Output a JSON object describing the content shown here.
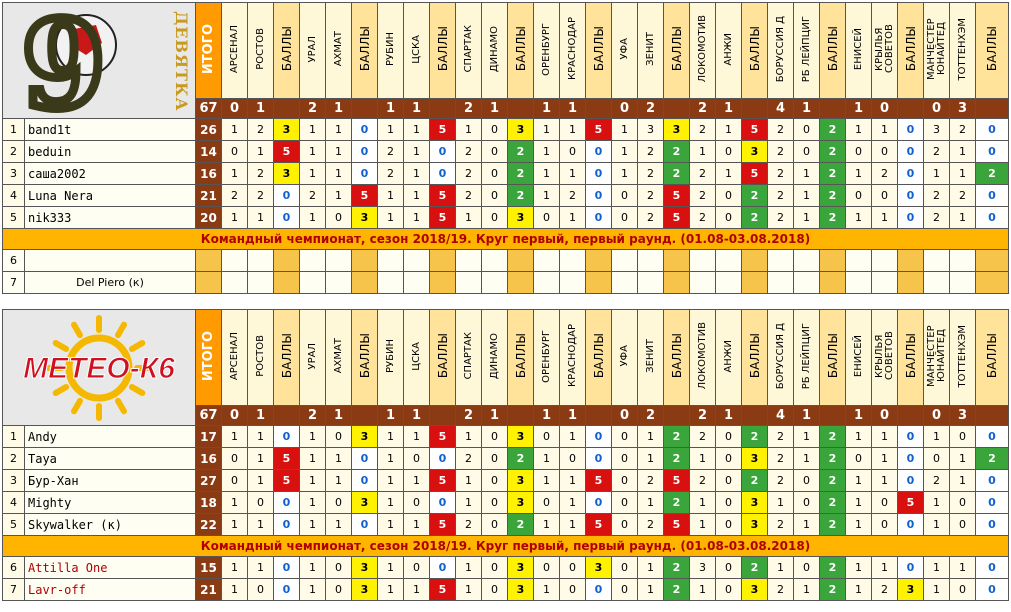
{
  "columns": {
    "itogo": "ИТОГО",
    "bally": "БАЛЛЫ",
    "matches": [
      {
        "home": "АРСЕНАЛ",
        "away": "РОСТОВ",
        "score": [
          "0",
          "1"
        ]
      },
      {
        "home": "УРАЛ",
        "away": "АХМАТ",
        "score": [
          "2",
          "1"
        ]
      },
      {
        "home": "РУБИН",
        "away": "ЦСКА",
        "score": [
          "1",
          "1"
        ]
      },
      {
        "home": "СПАРТАК",
        "away": "ДИНАМО",
        "score": [
          "2",
          "1"
        ]
      },
      {
        "home": "ОРЕНБУРГ",
        "away": "КРАСНОДАР",
        "score": [
          "1",
          "1"
        ]
      },
      {
        "home": "УФА",
        "away": "ЗЕНИТ",
        "score": [
          "0",
          "2"
        ]
      },
      {
        "home": "ЛОКОМОТИВ",
        "away": "АНЖИ",
        "score": [
          "2",
          "1"
        ]
      },
      {
        "home": "БОРУССИЯ Д",
        "away": "РБ ЛЕЙПЦИГ",
        "score": [
          "4",
          "1"
        ]
      },
      {
        "home": "ЕНИСЕЙ",
        "away": "КРЫЛЬЯ СОВЕТОВ",
        "score": [
          "1",
          "0"
        ]
      },
      {
        "home": "МАНЧЕСТЕР ЮНАЙТЕД",
        "away": "ТОТТЕНХЭМ",
        "score": [
          "0",
          "3"
        ]
      }
    ],
    "result_total": "67"
  },
  "banner_text": "Командный чемпионат, сезон 2018/19. Круг первый, первый раунд. (01.08-03.08.2018)",
  "teams": [
    {
      "logo_text": "ДЕВЯТКА",
      "logo_digit": "9",
      "colors": {
        "logo_digit": "#3a3a1a",
        "logo_text": "#c89a20"
      },
      "players": [
        {
          "num": "1",
          "name": "band1t",
          "total": "26",
          "cells": [
            "1",
            "2",
            "3",
            "1",
            "1",
            "0",
            "1",
            "1",
            "5",
            "1",
            "0",
            "3",
            "1",
            "1",
            "5",
            "1",
            "3",
            "3",
            "2",
            "1",
            "5",
            "2",
            "0",
            "2",
            "1",
            "1",
            "0",
            "3",
            "2",
            "0"
          ]
        },
        {
          "num": "2",
          "name": "beduin",
          "total": "14",
          "cells": [
            "0",
            "1",
            "5",
            "1",
            "1",
            "0",
            "2",
            "1",
            "0",
            "2",
            "0",
            "2",
            "1",
            "0",
            "0",
            "1",
            "2",
            "2",
            "1",
            "0",
            "3",
            "2",
            "0",
            "2",
            "0",
            "0",
            "0",
            "2",
            "1",
            "0"
          ]
        },
        {
          "num": "3",
          "name": "саша2002",
          "total": "16",
          "cells": [
            "1",
            "2",
            "3",
            "1",
            "1",
            "0",
            "2",
            "1",
            "0",
            "2",
            "0",
            "2",
            "1",
            "1",
            "0",
            "1",
            "2",
            "2",
            "2",
            "1",
            "5",
            "2",
            "1",
            "2",
            "1",
            "2",
            "0",
            "1",
            "1",
            "2"
          ]
        },
        {
          "num": "4",
          "name": "Luna Nera",
          "total": "21",
          "cells": [
            "2",
            "2",
            "0",
            "2",
            "1",
            "5",
            "1",
            "1",
            "5",
            "2",
            "0",
            "2",
            "1",
            "2",
            "0",
            "0",
            "2",
            "5",
            "2",
            "0",
            "2",
            "2",
            "1",
            "2",
            "0",
            "0",
            "0",
            "2",
            "2",
            "0"
          ]
        },
        {
          "num": "5",
          "name": "nik333",
          "total": "20",
          "cells": [
            "1",
            "1",
            "0",
            "1",
            "0",
            "3",
            "1",
            "1",
            "5",
            "1",
            "0",
            "3",
            "0",
            "1",
            "0",
            "0",
            "2",
            "5",
            "2",
            "0",
            "2",
            "2",
            "1",
            "2",
            "1",
            "1",
            "0",
            "2",
            "1",
            "0"
          ]
        }
      ],
      "reserves": [
        {
          "num": "6",
          "name": ""
        },
        {
          "num": "7",
          "name": "Del Piero (к)"
        }
      ]
    },
    {
      "logo_text": "МЕТЕО-К6",
      "colors": {
        "logo_text": "#d01020",
        "sun": "#f5b800"
      },
      "players": [
        {
          "num": "1",
          "name": "Andy",
          "total": "17",
          "cells": [
            "1",
            "1",
            "0",
            "1",
            "0",
            "3",
            "1",
            "1",
            "5",
            "1",
            "0",
            "3",
            "0",
            "1",
            "0",
            "0",
            "1",
            "2",
            "2",
            "0",
            "2",
            "2",
            "1",
            "2",
            "1",
            "1",
            "0",
            "1",
            "0",
            "0"
          ]
        },
        {
          "num": "2",
          "name": "Taya",
          "total": "16",
          "cells": [
            "0",
            "1",
            "5",
            "1",
            "1",
            "0",
            "1",
            "0",
            "0",
            "2",
            "0",
            "2",
            "1",
            "0",
            "0",
            "0",
            "1",
            "2",
            "1",
            "0",
            "3",
            "2",
            "1",
            "2",
            "0",
            "1",
            "0",
            "0",
            "1",
            "2"
          ]
        },
        {
          "num": "3",
          "name": "Бур-Хан",
          "total": "27",
          "cells": [
            "0",
            "1",
            "5",
            "1",
            "1",
            "0",
            "1",
            "1",
            "5",
            "1",
            "0",
            "3",
            "1",
            "1",
            "5",
            "0",
            "2",
            "5",
            "2",
            "0",
            "2",
            "2",
            "0",
            "2",
            "1",
            "1",
            "0",
            "2",
            "1",
            "0"
          ]
        },
        {
          "num": "4",
          "name": "Mighty",
          "total": "18",
          "cells": [
            "1",
            "0",
            "0",
            "1",
            "0",
            "3",
            "1",
            "0",
            "0",
            "1",
            "0",
            "3",
            "0",
            "1",
            "0",
            "0",
            "1",
            "2",
            "1",
            "0",
            "3",
            "1",
            "0",
            "2",
            "1",
            "0",
            "5",
            "1",
            "0",
            "0"
          ]
        },
        {
          "num": "5",
          "name": "Skywalker (к)",
          "total": "22",
          "cells": [
            "1",
            "1",
            "0",
            "1",
            "1",
            "0",
            "1",
            "1",
            "5",
            "2",
            "0",
            "2",
            "1",
            "1",
            "5",
            "0",
            "2",
            "5",
            "1",
            "0",
            "3",
            "2",
            "1",
            "2",
            "1",
            "0",
            "0",
            "1",
            "0",
            "0"
          ]
        }
      ],
      "reserves": [
        {
          "num": "6",
          "name": "Attilla One",
          "total": "15",
          "cells": [
            "1",
            "1",
            "0",
            "1",
            "0",
            "3",
            "1",
            "0",
            "0",
            "1",
            "0",
            "3",
            "0",
            "0",
            "3",
            "0",
            "1",
            "2",
            "3",
            "0",
            "2",
            "1",
            "0",
            "2",
            "1",
            "1",
            "0",
            "1",
            "1",
            "0"
          ]
        },
        {
          "num": "7",
          "name": "Lavr-off",
          "total": "21",
          "cells": [
            "1",
            "0",
            "0",
            "1",
            "0",
            "3",
            "1",
            "1",
            "5",
            "1",
            "0",
            "3",
            "1",
            "0",
            "0",
            "0",
            "1",
            "2",
            "1",
            "0",
            "3",
            "2",
            "1",
            "2",
            "1",
            "2",
            "3",
            "1",
            "0",
            "0"
          ]
        }
      ]
    }
  ]
}
